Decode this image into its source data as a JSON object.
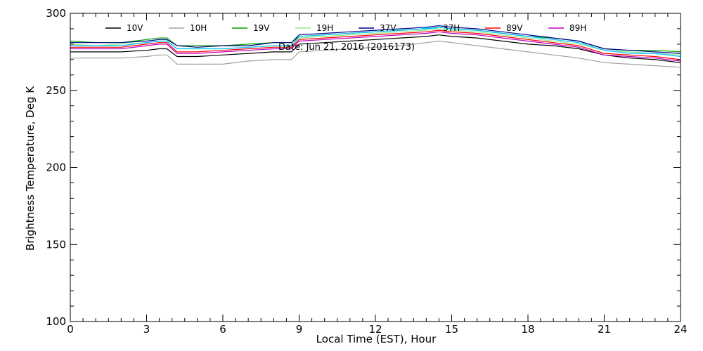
{
  "chart_data": {
    "type": "line",
    "title": "",
    "annotation": "Date: Jun 21, 2016 (2016173)",
    "xlabel": "Local Time (EST), Hour",
    "ylabel": "Brightness Temperature, Deg K",
    "xlim": [
      0,
      24
    ],
    "ylim": [
      100,
      300
    ],
    "xticks": [
      0,
      3,
      6,
      9,
      12,
      15,
      18,
      21,
      24
    ],
    "yticks": [
      100,
      150,
      200,
      250,
      300
    ],
    "grid": false,
    "legend_position": "top",
    "x": [
      0,
      1,
      2,
      3,
      3.5,
      3.8,
      4.2,
      5,
      6,
      7,
      8,
      8.7,
      9,
      10,
      11,
      12,
      13,
      14,
      14.5,
      15,
      16,
      17,
      18,
      19,
      20,
      21,
      22,
      23,
      24
    ],
    "series": [
      {
        "name": "10V",
        "color": "#000000",
        "values": [
          275,
          275,
          275,
          276,
          277,
          277,
          272,
          272,
          273,
          274,
          275,
          275,
          280,
          281,
          282,
          283,
          284,
          285,
          286,
          285,
          284,
          282,
          280,
          279,
          277,
          273,
          271,
          270,
          268
        ]
      },
      {
        "name": "10H",
        "color": "#a0a0a0",
        "values": [
          271,
          271,
          271,
          272,
          273,
          273,
          267,
          267,
          267,
          269,
          270,
          270,
          275,
          276,
          277,
          278,
          279,
          281,
          282,
          281,
          279,
          277,
          275,
          273,
          271,
          268,
          267,
          266,
          265
        ]
      },
      {
        "name": "19V",
        "color": "#00a000",
        "values": [
          282,
          281,
          281,
          283,
          284,
          284,
          279,
          279,
          279,
          280,
          281,
          281,
          285,
          286,
          287,
          288,
          289,
          290,
          291,
          290,
          289,
          287,
          285,
          284,
          282,
          277,
          276,
          276,
          275
        ]
      },
      {
        "name": "19H",
        "color": "#90ee90",
        "values": [
          280,
          279,
          280,
          281,
          282,
          282,
          277,
          277,
          277,
          278,
          279,
          279,
          284,
          285,
          286,
          287,
          288,
          289,
          290,
          289,
          288,
          286,
          284,
          282,
          280,
          276,
          275,
          274,
          273
        ]
      },
      {
        "name": "37V",
        "color": "#00008b",
        "values": [
          281,
          281,
          281,
          282,
          283,
          283,
          279,
          278,
          279,
          279,
          281,
          281,
          286,
          287,
          288,
          289,
          290,
          291,
          292,
          291,
          290,
          288,
          286,
          284,
          282,
          277,
          276,
          275,
          274
        ]
      },
      {
        "name": "37H",
        "color": "#00bfff",
        "values": [
          279,
          279,
          279,
          281,
          282,
          282,
          277,
          277,
          277,
          278,
          279,
          279,
          285,
          286,
          287,
          288,
          289,
          290,
          291,
          290,
          289,
          287,
          285,
          283,
          281,
          276,
          274,
          274,
          272
        ]
      },
      {
        "name": "89V",
        "color": "#ff0000",
        "values": [
          278,
          278,
          278,
          280,
          281,
          281,
          275,
          275,
          276,
          277,
          278,
          278,
          283,
          284,
          285,
          286,
          287,
          288,
          289,
          288,
          287,
          285,
          283,
          281,
          279,
          274,
          273,
          272,
          270
        ]
      },
      {
        "name": "89H",
        "color": "#c000c0",
        "values": [
          277,
          277,
          277,
          279,
          280,
          280,
          274,
          274,
          275,
          276,
          277,
          277,
          282,
          283,
          284,
          285,
          286,
          287,
          288,
          287,
          286,
          284,
          282,
          280,
          278,
          273,
          272,
          271,
          269
        ]
      }
    ]
  }
}
